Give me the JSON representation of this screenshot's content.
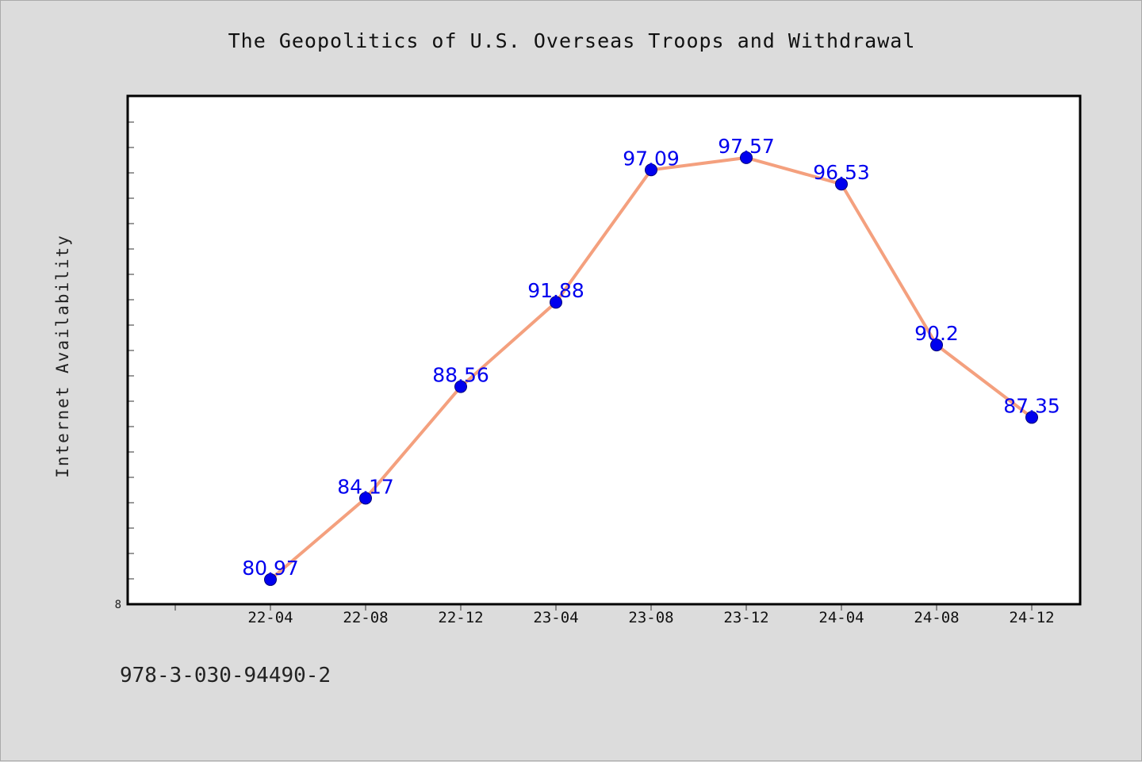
{
  "chart_data": {
    "type": "line",
    "title": "The Geopolitics of U.S. Overseas Troops and Withdrawal",
    "xlabel": "",
    "ylabel": "Internet Availability",
    "categories": [
      "22-04",
      "22-08",
      "22-12",
      "23-04",
      "23-08",
      "23-12",
      "24-04",
      "24-08",
      "24-12"
    ],
    "series": [
      {
        "values": [
          80.97,
          84.17,
          88.56,
          91.88,
          97.09,
          97.57,
          96.53,
          90.2,
          87.35
        ]
      }
    ],
    "value_labels": [
      "80.97",
      "84.17",
      "88.56",
      "91.88",
      "97.09",
      "97.57",
      "96.53",
      "90.2",
      "87.35"
    ],
    "ytick_label": "8",
    "ylim": [
      80,
      100
    ],
    "grid": false,
    "line_color": "#f4a07e",
    "marker_color": "#0000ee",
    "label_color": "#0000ee"
  },
  "footer": {
    "identifier": "978-3-030-94490-2"
  }
}
